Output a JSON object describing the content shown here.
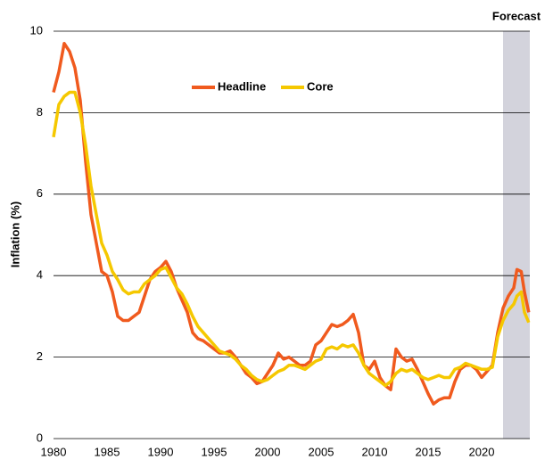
{
  "chart_data": {
    "type": "line",
    "ylabel": "Inflation (%)",
    "annotation": "Forecast",
    "forecast_start": 2022,
    "forecast_color": "#d3d3dc",
    "x": [
      1980,
      1980.5,
      1981,
      1981.5,
      1982,
      1982.5,
      1983,
      1983.5,
      1984,
      1984.5,
      1985,
      1985.5,
      1986,
      1986.5,
      1987,
      1987.5,
      1988,
      1988.5,
      1989,
      1989.5,
      1990,
      1990.5,
      1991,
      1991.5,
      1992,
      1992.5,
      1993,
      1993.5,
      1994,
      1994.5,
      1995,
      1995.5,
      1996,
      1996.5,
      1997,
      1997.5,
      1998,
      1998.5,
      1999,
      1999.5,
      2000,
      2000.5,
      2001,
      2001.5,
      2002,
      2002.5,
      2003,
      2003.5,
      2004,
      2004.5,
      2005,
      2005.5,
      2006,
      2006.5,
      2007,
      2007.5,
      2008,
      2008.5,
      2009,
      2009.5,
      2010,
      2010.5,
      2011,
      2011.5,
      2012,
      2012.5,
      2013,
      2013.5,
      2014,
      2014.5,
      2015,
      2015.5,
      2016,
      2016.5,
      2017,
      2017.5,
      2018,
      2018.5,
      2019,
      2019.5,
      2020,
      2020.5,
      2021,
      2021.5,
      2022,
      2022.5,
      2023,
      2023.3,
      2023.7,
      2024,
      2024.4
    ],
    "series": [
      {
        "name": "Headline",
        "color": "#f05a1e",
        "values": [
          8.5,
          9.0,
          9.7,
          9.5,
          9.1,
          8.3,
          6.8,
          5.5,
          4.8,
          4.1,
          4.0,
          3.6,
          3.0,
          2.9,
          2.9,
          3.0,
          3.1,
          3.5,
          3.9,
          4.1,
          4.2,
          4.35,
          4.1,
          3.7,
          3.4,
          3.1,
          2.6,
          2.45,
          2.4,
          2.3,
          2.2,
          2.1,
          2.1,
          2.15,
          2.0,
          1.8,
          1.6,
          1.5,
          1.35,
          1.4,
          1.6,
          1.8,
          2.1,
          1.95,
          2.0,
          1.9,
          1.8,
          1.8,
          1.9,
          2.3,
          2.4,
          2.6,
          2.8,
          2.75,
          2.8,
          2.9,
          3.05,
          2.6,
          1.8,
          1.7,
          1.9,
          1.5,
          1.3,
          1.2,
          2.2,
          2.0,
          1.9,
          1.95,
          1.7,
          1.4,
          1.1,
          0.85,
          0.95,
          1.0,
          1.0,
          1.4,
          1.7,
          1.8,
          1.8,
          1.7,
          1.5,
          1.65,
          1.8,
          2.6,
          3.2,
          3.5,
          3.7,
          4.15,
          4.1,
          3.6,
          3.1
        ]
      },
      {
        "name": "Core",
        "color": "#f5c800",
        "values": [
          7.4,
          8.2,
          8.4,
          8.5,
          8.5,
          8.0,
          7.2,
          6.2,
          5.5,
          4.8,
          4.5,
          4.1,
          3.9,
          3.65,
          3.55,
          3.6,
          3.6,
          3.8,
          3.9,
          4.0,
          4.15,
          4.2,
          3.95,
          3.7,
          3.55,
          3.3,
          3.0,
          2.75,
          2.6,
          2.45,
          2.3,
          2.15,
          2.1,
          2.05,
          1.95,
          1.8,
          1.7,
          1.55,
          1.45,
          1.4,
          1.45,
          1.55,
          1.65,
          1.7,
          1.8,
          1.8,
          1.75,
          1.7,
          1.8,
          1.9,
          1.95,
          2.2,
          2.25,
          2.2,
          2.3,
          2.25,
          2.3,
          2.1,
          1.8,
          1.6,
          1.5,
          1.4,
          1.3,
          1.4,
          1.6,
          1.7,
          1.65,
          1.7,
          1.6,
          1.5,
          1.45,
          1.5,
          1.55,
          1.5,
          1.5,
          1.7,
          1.75,
          1.85,
          1.8,
          1.75,
          1.7,
          1.7,
          1.75,
          2.5,
          2.9,
          3.15,
          3.3,
          3.5,
          3.6,
          3.1,
          2.85
        ]
      }
    ],
    "xlim": [
      1980,
      2024.5
    ],
    "xticks": [
      1980,
      1985,
      1990,
      1995,
      2000,
      2005,
      2010,
      2015,
      2020
    ],
    "ylim": [
      0,
      10
    ],
    "yticks": [
      0,
      2,
      4,
      6,
      8,
      10
    ],
    "grid": true
  }
}
